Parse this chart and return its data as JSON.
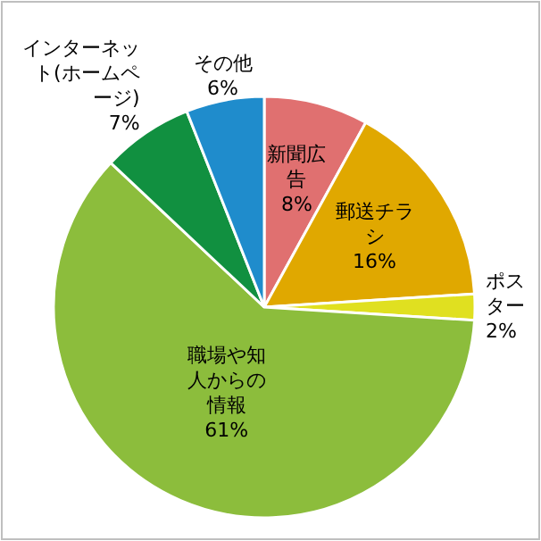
{
  "chart_data": {
    "type": "pie",
    "categories": [
      "新聞広告",
      "郵送チラシ",
      "ポスター",
      "職場や知人からの情報",
      "インターネット(ホームページ)",
      "その他"
    ],
    "values": [
      8,
      16,
      2,
      61,
      7,
      6
    ],
    "value_labels": [
      "8%",
      "16%",
      "2%",
      "61%",
      "7%",
      "6%"
    ],
    "colors": [
      "#e07070",
      "#e0a800",
      "#e0e020",
      "#8cbd3c",
      "#119040",
      "#1f8ccc"
    ]
  }
}
